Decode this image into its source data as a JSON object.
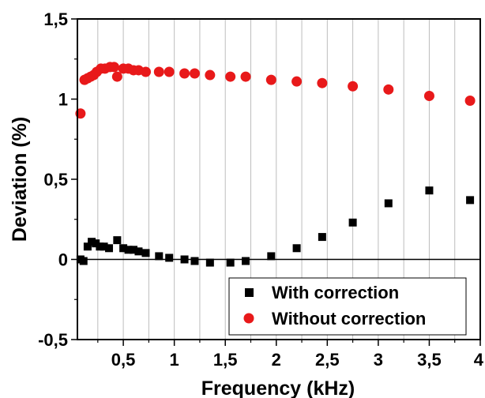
{
  "chart_data": {
    "type": "scatter",
    "title": "",
    "xlabel": "Frequency (kHz)",
    "ylabel": "Deviation (%)",
    "xlim": [
      0.05,
      4.0
    ],
    "ylim": [
      -0.5,
      1.5
    ],
    "x_ticks": [
      0.5,
      1,
      1.5,
      2,
      2.5,
      3,
      3.5,
      4
    ],
    "x_tick_labels": [
      "0,5",
      "1",
      "1,5",
      "2",
      "2,5",
      "3",
      "3,5",
      "4"
    ],
    "y_ticks": [
      -0.5,
      0,
      0.5,
      1,
      1.5
    ],
    "y_tick_labels": [
      "-0,5",
      "0",
      "0,5",
      "1",
      "1,5"
    ],
    "vertical_grid": true,
    "zero_line": true,
    "legend_position": "bottom-right",
    "series": [
      {
        "name": "With correction",
        "marker": "square",
        "color": "#000000",
        "x": [
          0.08,
          0.11,
          0.15,
          0.19,
          0.23,
          0.27,
          0.31,
          0.36,
          0.44,
          0.5,
          0.55,
          0.6,
          0.65,
          0.72,
          0.85,
          0.95,
          1.1,
          1.2,
          1.35,
          1.55,
          1.7,
          1.95,
          2.2,
          2.45,
          2.75,
          3.1,
          3.5,
          3.9
        ],
        "y": [
          0.0,
          -0.01,
          0.08,
          0.11,
          0.1,
          0.08,
          0.08,
          0.07,
          0.12,
          0.07,
          0.06,
          0.06,
          0.05,
          0.04,
          0.02,
          0.01,
          0.0,
          -0.01,
          -0.02,
          -0.02,
          -0.01,
          0.02,
          0.07,
          0.14,
          0.23,
          0.35,
          0.43,
          0.37
        ]
      },
      {
        "name": "Without correction",
        "marker": "circle",
        "color": "#e8191a",
        "x": [
          0.08,
          0.12,
          0.15,
          0.18,
          0.21,
          0.24,
          0.28,
          0.32,
          0.37,
          0.41,
          0.44,
          0.5,
          0.55,
          0.6,
          0.65,
          0.72,
          0.85,
          0.95,
          1.1,
          1.2,
          1.35,
          1.55,
          1.7,
          1.95,
          2.2,
          2.45,
          2.75,
          3.1,
          3.5,
          3.9
        ],
        "y": [
          0.91,
          1.12,
          1.13,
          1.14,
          1.15,
          1.17,
          1.19,
          1.19,
          1.2,
          1.2,
          1.14,
          1.19,
          1.19,
          1.18,
          1.18,
          1.17,
          1.17,
          1.17,
          1.16,
          1.16,
          1.15,
          1.14,
          1.14,
          1.12,
          1.11,
          1.1,
          1.08,
          1.06,
          1.02,
          0.99
        ]
      }
    ]
  }
}
